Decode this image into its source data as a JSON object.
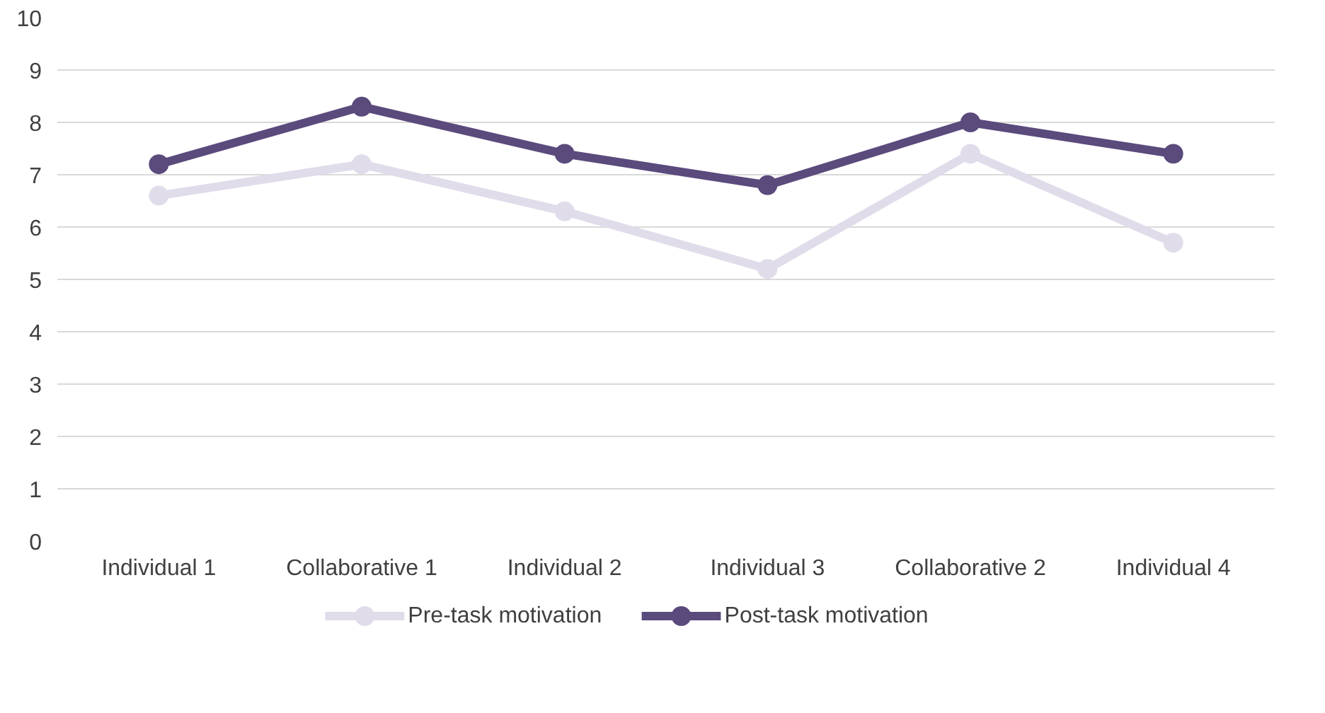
{
  "chart_data": {
    "type": "line",
    "categories": [
      "Individual 1",
      "Collaborative 1",
      "Individual 2",
      "Individual 3",
      "Collaborative 2",
      "Individual 4"
    ],
    "series": [
      {
        "name": "Pre-task motivation",
        "color": "#e1dcea",
        "values": [
          6.6,
          7.2,
          6.3,
          5.2,
          7.4,
          5.7
        ]
      },
      {
        "name": "Post-task motivation",
        "color": "#5b4a7c",
        "values": [
          7.2,
          8.3,
          7.4,
          6.8,
          8.0,
          7.4
        ]
      }
    ],
    "ylim": [
      0,
      10
    ],
    "yticks": [
      0,
      1,
      2,
      3,
      4,
      5,
      6,
      7,
      8,
      9,
      10
    ],
    "grid": "y",
    "legend": "bottom",
    "marker": "circle",
    "line_style": "solid"
  }
}
